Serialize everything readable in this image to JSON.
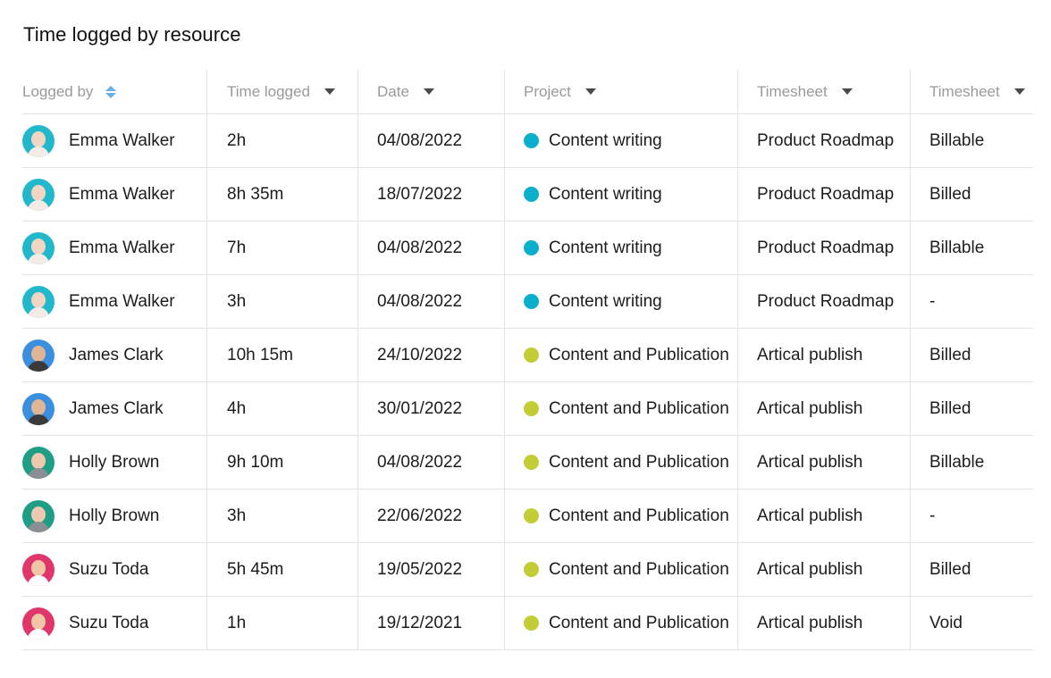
{
  "title": "Time logged by resource",
  "headers": {
    "logged_by": "Logged by",
    "time_logged": "Time logged",
    "date": "Date",
    "project": "Project",
    "timesheet1": "Timesheet",
    "timesheet2": "Timesheet"
  },
  "colors": {
    "content_writing": "#0ab0cb",
    "content_publication": "#c3cd36",
    "sort_icon": "#6aaee8"
  },
  "rows": [
    {
      "name": "Emma Walker",
      "avatar": "emma-avatar",
      "time": "2h",
      "date": "04/08/2022",
      "project": "Content writing",
      "project_color": "#0ab0cb",
      "timesheet": "Product Roadmap",
      "status": "Billable"
    },
    {
      "name": "Emma Walker",
      "avatar": "emma-avatar",
      "time": "8h 35m",
      "date": "18/07/2022",
      "project": "Content writing",
      "project_color": "#0ab0cb",
      "timesheet": "Product Roadmap",
      "status": "Billed"
    },
    {
      "name": "Emma Walker",
      "avatar": "emma-avatar",
      "time": "7h",
      "date": "04/08/2022",
      "project": "Content writing",
      "project_color": "#0ab0cb",
      "timesheet": "Product Roadmap",
      "status": "Billable"
    },
    {
      "name": "Emma Walker",
      "avatar": "emma-avatar",
      "time": "3h",
      "date": "04/08/2022",
      "project": "Content writing",
      "project_color": "#0ab0cb",
      "timesheet": "Product Roadmap",
      "status": "-"
    },
    {
      "name": "James Clark",
      "avatar": "james-avatar",
      "time": "10h 15m",
      "date": "24/10/2022",
      "project": "Content and Publication",
      "project_color": "#c3cd36",
      "timesheet": "Artical publish",
      "status": "Billed"
    },
    {
      "name": "James Clark",
      "avatar": "james-avatar",
      "time": "4h",
      "date": "30/01/2022",
      "project": "Content and Publication",
      "project_color": "#c3cd36",
      "timesheet": "Artical publish",
      "status": "Billed"
    },
    {
      "name": "Holly Brown",
      "avatar": "holly-avatar",
      "time": "9h 10m",
      "date": "04/08/2022",
      "project": "Content and Publication",
      "project_color": "#c3cd36",
      "timesheet": "Artical publish",
      "status": "Billable"
    },
    {
      "name": "Holly Brown",
      "avatar": "holly-avatar",
      "time": "3h",
      "date": "22/06/2022",
      "project": "Content and Publication",
      "project_color": "#c3cd36",
      "timesheet": "Artical publish",
      "status": "-"
    },
    {
      "name": "Suzu Toda",
      "avatar": "suzu-avatar",
      "time": "5h 45m",
      "date": "19/05/2022",
      "project": "Content and Publication",
      "project_color": "#c3cd36",
      "timesheet": "Artical publish",
      "status": "Billed"
    },
    {
      "name": "Suzu Toda",
      "avatar": "suzu-avatar",
      "time": "1h",
      "date": "19/12/2021",
      "project": "Content and Publication",
      "project_color": "#c3cd36",
      "timesheet": "Artical publish",
      "status": "Void"
    }
  ]
}
